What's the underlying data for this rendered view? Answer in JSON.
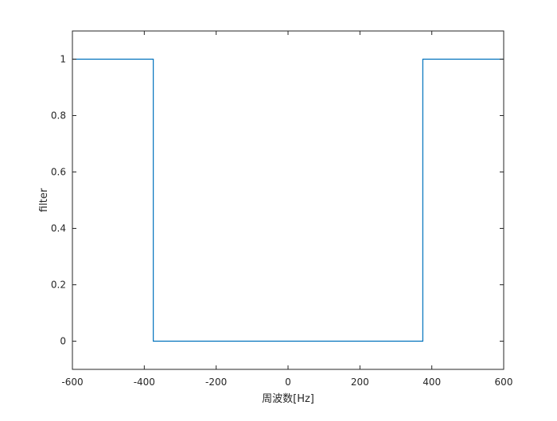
{
  "chart_data": {
    "type": "line",
    "title": "",
    "xlabel": "周波数[Hz]",
    "ylabel": "filter",
    "xlim": [
      -600,
      600
    ],
    "ylim": [
      -0.1,
      1.1
    ],
    "xticks": [
      -600,
      -400,
      -200,
      0,
      200,
      400,
      600
    ],
    "xtick_labels": [
      "-600",
      "-400",
      "-200",
      "0",
      "200",
      "400",
      "600"
    ],
    "yticks": [
      0,
      0.2,
      0.4,
      0.6,
      0.8,
      1
    ],
    "ytick_labels": [
      "0",
      "0.2",
      "0.4",
      "0.6",
      "0.8",
      "1"
    ],
    "grid": false,
    "series": [
      {
        "color": "#0072bd",
        "x": [
          -600,
          -375,
          -375,
          375,
          375,
          600
        ],
        "y": [
          1,
          1,
          0,
          0,
          1,
          1
        ]
      }
    ]
  }
}
